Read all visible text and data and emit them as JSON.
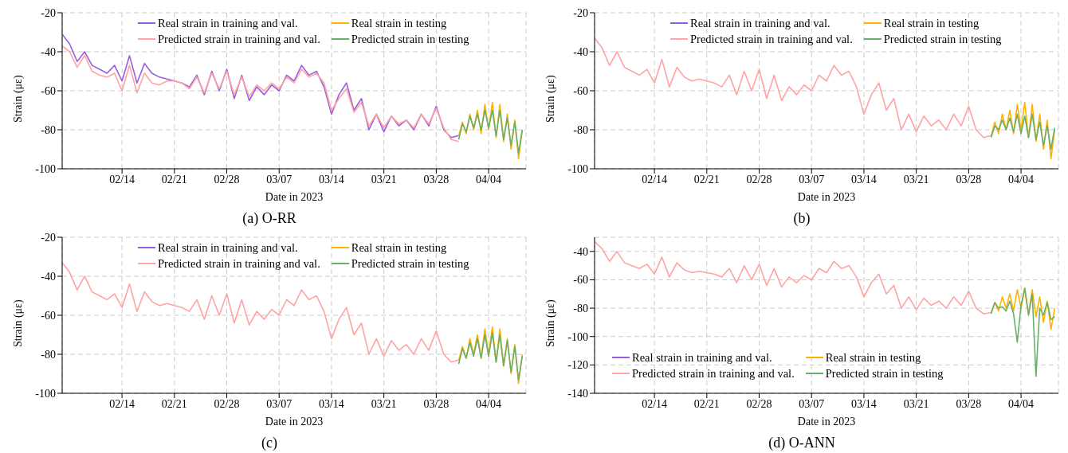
{
  "chart_data": [
    {
      "type": "line",
      "xlabel": "Date in 2023",
      "ylabel": "Strain (με)",
      "annotations": [
        "(a) O-RR"
      ],
      "grid": true,
      "legend": "top",
      "ylim": [
        -100,
        -20
      ],
      "yticks": [
        -100,
        -80,
        -60,
        -40,
        -20
      ],
      "xlim": [
        "2023-02-06",
        "2023-04-09"
      ],
      "xticks": [
        {
          "value": "2023-02-14",
          "label": "02/14"
        },
        {
          "value": "2023-02-21",
          "label": "02/21"
        },
        {
          "value": "2023-02-28",
          "label": "02/28"
        },
        {
          "value": "2023-03-07",
          "label": "03/07"
        },
        {
          "value": "2023-03-14",
          "label": "03/14"
        },
        {
          "value": "2023-03-21",
          "label": "03/21"
        },
        {
          "value": "2023-03-28",
          "label": "03/28"
        },
        {
          "value": "2023-04-04",
          "label": "04/04"
        }
      ],
      "series": [
        {
          "name": "Real strain in training and val.",
          "color": "#9b5de0",
          "x": [
            "2023-02-06",
            "2023-02-07",
            "2023-02-08",
            "2023-02-09",
            "2023-02-10",
            "2023-02-11",
            "2023-02-12",
            "2023-02-13",
            "2023-02-14",
            "2023-02-15",
            "2023-02-16",
            "2023-02-17",
            "2023-02-18",
            "2023-02-19",
            "2023-02-20",
            "2023-02-21",
            "2023-02-22",
            "2023-02-23",
            "2023-02-24",
            "2023-02-25",
            "2023-02-26",
            "2023-02-27",
            "2023-02-28",
            "2023-03-01",
            "2023-03-02",
            "2023-03-03",
            "2023-03-04",
            "2023-03-05",
            "2023-03-06",
            "2023-03-07",
            "2023-03-08",
            "2023-03-09",
            "2023-03-10",
            "2023-03-11",
            "2023-03-12",
            "2023-03-13",
            "2023-03-14",
            "2023-03-15",
            "2023-03-16",
            "2023-03-17",
            "2023-03-18",
            "2023-03-19",
            "2023-03-20",
            "2023-03-21",
            "2023-03-22",
            "2023-03-23",
            "2023-03-24",
            "2023-03-25",
            "2023-03-26",
            "2023-03-27",
            "2023-03-28",
            "2023-03-29",
            "2023-03-30",
            "2023-03-31"
          ],
          "values": [
            -31,
            -36,
            -45,
            -40,
            -47,
            -49,
            -51,
            -47,
            -55,
            -42,
            -56,
            -46,
            -51,
            -53,
            -54,
            -55,
            -56,
            -58,
            -52,
            -62,
            -50,
            -60,
            -49,
            -64,
            -52,
            -65,
            -58,
            -62,
            -57,
            -60,
            -52,
            -55,
            -47,
            -52,
            -50,
            -58,
            -72,
            -62,
            -56,
            -70,
            -64,
            -80,
            -72,
            -81,
            -73,
            -78,
            -75,
            -80,
            -72,
            -78,
            -68,
            -80,
            -84,
            -83
          ]
        },
        {
          "name": "Predicted strain in training and val.",
          "color": "#ffa3a3",
          "x": [
            "2023-02-06",
            "2023-02-07",
            "2023-02-08",
            "2023-02-09",
            "2023-02-10",
            "2023-02-11",
            "2023-02-12",
            "2023-02-13",
            "2023-02-14",
            "2023-02-15",
            "2023-02-16",
            "2023-02-17",
            "2023-02-18",
            "2023-02-19",
            "2023-02-20",
            "2023-02-21",
            "2023-02-22",
            "2023-02-23",
            "2023-02-24",
            "2023-02-25",
            "2023-02-26",
            "2023-02-27",
            "2023-02-28",
            "2023-03-01",
            "2023-03-02",
            "2023-03-03",
            "2023-03-04",
            "2023-03-05",
            "2023-03-06",
            "2023-03-07",
            "2023-03-08",
            "2023-03-09",
            "2023-03-10",
            "2023-03-11",
            "2023-03-12",
            "2023-03-13",
            "2023-03-14",
            "2023-03-15",
            "2023-03-16",
            "2023-03-17",
            "2023-03-18",
            "2023-03-19",
            "2023-03-20",
            "2023-03-21",
            "2023-03-22",
            "2023-03-23",
            "2023-03-24",
            "2023-03-25",
            "2023-03-26",
            "2023-03-27",
            "2023-03-28",
            "2023-03-29",
            "2023-03-30",
            "2023-03-31"
          ],
          "values": [
            -37,
            -40,
            -48,
            -42,
            -50,
            -52,
            -53,
            -51,
            -60,
            -47,
            -61,
            -51,
            -56,
            -57,
            -55,
            -55,
            -56,
            -59,
            -53,
            -61,
            -51,
            -59,
            -50,
            -62,
            -53,
            -63,
            -57,
            -60,
            -56,
            -59,
            -53,
            -56,
            -49,
            -53,
            -51,
            -56,
            -70,
            -64,
            -59,
            -71,
            -66,
            -78,
            -72,
            -79,
            -73,
            -77,
            -75,
            -79,
            -72,
            -77,
            -69,
            -79,
            -85,
            -86
          ]
        },
        {
          "name": "Real strain in testing",
          "color": "#ffb300",
          "x": [
            "2023-03-31T00:00",
            "2023-03-31T12:00",
            "2023-04-01T00:00",
            "2023-04-01T12:00",
            "2023-04-02T00:00",
            "2023-04-02T12:00",
            "2023-04-03T00:00",
            "2023-04-03T12:00",
            "2023-04-04T00:00",
            "2023-04-04T12:00",
            "2023-04-05T00:00",
            "2023-04-05T12:00",
            "2023-04-06T00:00",
            "2023-04-06T12:00",
            "2023-04-07T00:00",
            "2023-04-07T12:00",
            "2023-04-08T00:00",
            "2023-04-08T12:00"
          ],
          "values": [
            -83,
            -76,
            -82,
            -72,
            -80,
            -70,
            -82,
            -67,
            -80,
            -66,
            -84,
            -67,
            -86,
            -72,
            -90,
            -75,
            -95,
            -80
          ]
        },
        {
          "name": "Predicted strain in testing",
          "color": "#6aaf6a",
          "x": [
            "2023-03-31T00:00",
            "2023-03-31T12:00",
            "2023-04-01T00:00",
            "2023-04-01T12:00",
            "2023-04-02T00:00",
            "2023-04-02T12:00",
            "2023-04-03T00:00",
            "2023-04-03T12:00",
            "2023-04-04T00:00",
            "2023-04-04T12:00",
            "2023-04-05T00:00",
            "2023-04-05T12:00",
            "2023-04-06T00:00",
            "2023-04-06T12:00",
            "2023-04-07T00:00",
            "2023-04-07T12:00",
            "2023-04-08T00:00",
            "2023-04-08T12:00"
          ],
          "values": [
            -85,
            -77,
            -81,
            -73,
            -79,
            -72,
            -80,
            -70,
            -79,
            -70,
            -83,
            -70,
            -85,
            -74,
            -88,
            -76,
            -92,
            -80
          ]
        }
      ]
    },
    {
      "type": "line",
      "xlabel": "Date in 2023",
      "ylabel": "Strain (με)",
      "annotations": [
        "(b)"
      ],
      "grid": true,
      "legend": "top",
      "ylim": [
        -100,
        -20
      ],
      "yticks": [
        -100,
        -80,
        -60,
        -40,
        -20
      ],
      "xlim": [
        "2023-02-06",
        "2023-04-09"
      ],
      "xticks": [
        {
          "value": "2023-02-14",
          "label": "02/14"
        },
        {
          "value": "2023-02-21",
          "label": "02/21"
        },
        {
          "value": "2023-02-28",
          "label": "02/28"
        },
        {
          "value": "2023-03-07",
          "label": "03/07"
        },
        {
          "value": "2023-03-14",
          "label": "03/14"
        },
        {
          "value": "2023-03-21",
          "label": "03/21"
        },
        {
          "value": "2023-03-28",
          "label": "03/28"
        },
        {
          "value": "2023-04-04",
          "label": "04/04"
        }
      ],
      "series": [
        {
          "name": "Real strain in training and val.",
          "color": "#9b5de0"
        },
        {
          "name": "Predicted strain in training and val.",
          "color": "#ffa3a3",
          "x": [
            "2023-02-06",
            "2023-02-07",
            "2023-02-08",
            "2023-02-09",
            "2023-02-10",
            "2023-02-11",
            "2023-02-12",
            "2023-02-13",
            "2023-02-14",
            "2023-02-15",
            "2023-02-16",
            "2023-02-17",
            "2023-02-18",
            "2023-02-19",
            "2023-02-20",
            "2023-02-21",
            "2023-02-22",
            "2023-02-23",
            "2023-02-24",
            "2023-02-25",
            "2023-02-26",
            "2023-02-27",
            "2023-02-28",
            "2023-03-01",
            "2023-03-02",
            "2023-03-03",
            "2023-03-04",
            "2023-03-05",
            "2023-03-06",
            "2023-03-07",
            "2023-03-08",
            "2023-03-09",
            "2023-03-10",
            "2023-03-11",
            "2023-03-12",
            "2023-03-13",
            "2023-03-14",
            "2023-03-15",
            "2023-03-16",
            "2023-03-17",
            "2023-03-18",
            "2023-03-19",
            "2023-03-20",
            "2023-03-21",
            "2023-03-22",
            "2023-03-23",
            "2023-03-24",
            "2023-03-25",
            "2023-03-26",
            "2023-03-27",
            "2023-03-28",
            "2023-03-29",
            "2023-03-30",
            "2023-03-31"
          ],
          "values": [
            -33,
            -38,
            -47,
            -40,
            -48,
            -50,
            -52,
            -49,
            -56,
            -44,
            -58,
            -48,
            -53,
            -55,
            -54,
            -55,
            -56,
            -58,
            -52,
            -62,
            -50,
            -60,
            -49,
            -64,
            -52,
            -65,
            -58,
            -62,
            -57,
            -60,
            -52,
            -55,
            -47,
            -52,
            -50,
            -58,
            -72,
            -62,
            -56,
            -70,
            -64,
            -80,
            -72,
            -81,
            -73,
            -78,
            -75,
            -80,
            -72,
            -78,
            -68,
            -80,
            -84,
            -83
          ]
        },
        {
          "name": "Real strain in testing",
          "color": "#ffb300",
          "x": [
            "2023-03-31T00:00",
            "2023-03-31T12:00",
            "2023-04-01T00:00",
            "2023-04-01T12:00",
            "2023-04-02T00:00",
            "2023-04-02T12:00",
            "2023-04-03T00:00",
            "2023-04-03T12:00",
            "2023-04-04T00:00",
            "2023-04-04T12:00",
            "2023-04-05T00:00",
            "2023-04-05T12:00",
            "2023-04-06T00:00",
            "2023-04-06T12:00",
            "2023-04-07T00:00",
            "2023-04-07T12:00",
            "2023-04-08T00:00",
            "2023-04-08T12:00"
          ],
          "values": [
            -83,
            -76,
            -82,
            -72,
            -80,
            -70,
            -82,
            -67,
            -80,
            -66,
            -84,
            -67,
            -86,
            -72,
            -90,
            -75,
            -95,
            -80
          ]
        },
        {
          "name": "Predicted strain in testing",
          "color": "#6aaf6a",
          "x": [
            "2023-03-31T00:00",
            "2023-03-31T12:00",
            "2023-04-01T00:00",
            "2023-04-01T12:00",
            "2023-04-02T00:00",
            "2023-04-02T12:00",
            "2023-04-03T00:00",
            "2023-04-03T12:00",
            "2023-04-04T00:00",
            "2023-04-04T12:00",
            "2023-04-05T00:00",
            "2023-04-05T12:00",
            "2023-04-06T00:00",
            "2023-04-06T12:00",
            "2023-04-07T00:00",
            "2023-04-07T12:00",
            "2023-04-08T00:00",
            "2023-04-08T12:00"
          ],
          "values": [
            -84,
            -78,
            -80,
            -75,
            -80,
            -74,
            -81,
            -72,
            -82,
            -73,
            -84,
            -72,
            -85,
            -76,
            -88,
            -78,
            -90,
            -79
          ]
        }
      ]
    },
    {
      "type": "line",
      "xlabel": "Date in 2023",
      "ylabel": "Strain (με)",
      "annotations": [
        "(c)"
      ],
      "grid": true,
      "legend": "top",
      "ylim": [
        -100,
        -20
      ],
      "yticks": [
        -100,
        -80,
        -60,
        -40,
        -20
      ],
      "xlim": [
        "2023-02-06",
        "2023-04-09"
      ],
      "xticks": [
        {
          "value": "2023-02-14",
          "label": "02/14"
        },
        {
          "value": "2023-02-21",
          "label": "02/21"
        },
        {
          "value": "2023-02-28",
          "label": "02/28"
        },
        {
          "value": "2023-03-07",
          "label": "03/07"
        },
        {
          "value": "2023-03-14",
          "label": "03/14"
        },
        {
          "value": "2023-03-21",
          "label": "03/21"
        },
        {
          "value": "2023-03-28",
          "label": "03/28"
        },
        {
          "value": "2023-04-04",
          "label": "04/04"
        }
      ],
      "series": [
        {
          "name": "Real strain in training and val.",
          "color": "#9b5de0"
        },
        {
          "name": "Predicted strain in training and val.",
          "color": "#ffa3a3",
          "x": [
            "2023-02-06",
            "2023-02-07",
            "2023-02-08",
            "2023-02-09",
            "2023-02-10",
            "2023-02-11",
            "2023-02-12",
            "2023-02-13",
            "2023-02-14",
            "2023-02-15",
            "2023-02-16",
            "2023-02-17",
            "2023-02-18",
            "2023-02-19",
            "2023-02-20",
            "2023-02-21",
            "2023-02-22",
            "2023-02-23",
            "2023-02-24",
            "2023-02-25",
            "2023-02-26",
            "2023-02-27",
            "2023-02-28",
            "2023-03-01",
            "2023-03-02",
            "2023-03-03",
            "2023-03-04",
            "2023-03-05",
            "2023-03-06",
            "2023-03-07",
            "2023-03-08",
            "2023-03-09",
            "2023-03-10",
            "2023-03-11",
            "2023-03-12",
            "2023-03-13",
            "2023-03-14",
            "2023-03-15",
            "2023-03-16",
            "2023-03-17",
            "2023-03-18",
            "2023-03-19",
            "2023-03-20",
            "2023-03-21",
            "2023-03-22",
            "2023-03-23",
            "2023-03-24",
            "2023-03-25",
            "2023-03-26",
            "2023-03-27",
            "2023-03-28",
            "2023-03-29",
            "2023-03-30",
            "2023-03-31"
          ],
          "values": [
            -33,
            -38,
            -47,
            -40,
            -48,
            -50,
            -52,
            -49,
            -56,
            -44,
            -58,
            -48,
            -53,
            -55,
            -54,
            -55,
            -56,
            -58,
            -52,
            -62,
            -50,
            -60,
            -49,
            -64,
            -52,
            -65,
            -58,
            -62,
            -57,
            -60,
            -52,
            -55,
            -47,
            -52,
            -50,
            -58,
            -72,
            -62,
            -56,
            -70,
            -64,
            -80,
            -72,
            -81,
            -73,
            -78,
            -75,
            -80,
            -72,
            -78,
            -68,
            -80,
            -84,
            -83
          ]
        },
        {
          "name": "Real strain in testing",
          "color": "#ffb300",
          "x": [
            "2023-03-31T00:00",
            "2023-03-31T12:00",
            "2023-04-01T00:00",
            "2023-04-01T12:00",
            "2023-04-02T00:00",
            "2023-04-02T12:00",
            "2023-04-03T00:00",
            "2023-04-03T12:00",
            "2023-04-04T00:00",
            "2023-04-04T12:00",
            "2023-04-05T00:00",
            "2023-04-05T12:00",
            "2023-04-06T00:00",
            "2023-04-06T12:00",
            "2023-04-07T00:00",
            "2023-04-07T12:00",
            "2023-04-08T00:00",
            "2023-04-08T12:00"
          ],
          "values": [
            -83,
            -76,
            -82,
            -72,
            -80,
            -70,
            -82,
            -67,
            -80,
            -66,
            -84,
            -67,
            -86,
            -72,
            -90,
            -75,
            -95,
            -80
          ]
        },
        {
          "name": "Predicted strain in testing",
          "color": "#6aaf6a",
          "x": [
            "2023-03-31T00:00",
            "2023-03-31T12:00",
            "2023-04-01T00:00",
            "2023-04-01T12:00",
            "2023-04-02T00:00",
            "2023-04-02T12:00",
            "2023-04-03T00:00",
            "2023-04-03T12:00",
            "2023-04-04T00:00",
            "2023-04-04T12:00",
            "2023-04-05T00:00",
            "2023-04-05T12:00",
            "2023-04-06T00:00",
            "2023-04-06T12:00",
            "2023-04-07T00:00",
            "2023-04-07T12:00",
            "2023-04-08T00:00",
            "2023-04-08T12:00"
          ],
          "values": [
            -85,
            -77,
            -82,
            -74,
            -81,
            -72,
            -82,
            -70,
            -81,
            -69,
            -84,
            -70,
            -86,
            -73,
            -89,
            -76,
            -93,
            -81
          ]
        }
      ]
    },
    {
      "type": "line",
      "xlabel": "Date in 2023",
      "ylabel": "Strain (με)",
      "annotations": [
        "(d) O-ANN"
      ],
      "grid": true,
      "legend": "bottom",
      "ylim": [
        -140,
        -30
      ],
      "yticks": [
        -140,
        -120,
        -100,
        -80,
        -60,
        -40
      ],
      "xlim": [
        "2023-02-06",
        "2023-04-09"
      ],
      "xticks": [
        {
          "value": "2023-02-14",
          "label": "02/14"
        },
        {
          "value": "2023-02-21",
          "label": "02/21"
        },
        {
          "value": "2023-02-28",
          "label": "02/28"
        },
        {
          "value": "2023-03-07",
          "label": "03/07"
        },
        {
          "value": "2023-03-14",
          "label": "03/14"
        },
        {
          "value": "2023-03-21",
          "label": "03/21"
        },
        {
          "value": "2023-03-28",
          "label": "03/28"
        },
        {
          "value": "2023-04-04",
          "label": "04/04"
        }
      ],
      "series": [
        {
          "name": "Real strain in training and val.",
          "color": "#9b5de0"
        },
        {
          "name": "Predicted strain in training and val.",
          "color": "#ffa3a3",
          "x": [
            "2023-02-06",
            "2023-02-07",
            "2023-02-08",
            "2023-02-09",
            "2023-02-10",
            "2023-02-11",
            "2023-02-12",
            "2023-02-13",
            "2023-02-14",
            "2023-02-15",
            "2023-02-16",
            "2023-02-17",
            "2023-02-18",
            "2023-02-19",
            "2023-02-20",
            "2023-02-21",
            "2023-02-22",
            "2023-02-23",
            "2023-02-24",
            "2023-02-25",
            "2023-02-26",
            "2023-02-27",
            "2023-02-28",
            "2023-03-01",
            "2023-03-02",
            "2023-03-03",
            "2023-03-04",
            "2023-03-05",
            "2023-03-06",
            "2023-03-07",
            "2023-03-08",
            "2023-03-09",
            "2023-03-10",
            "2023-03-11",
            "2023-03-12",
            "2023-03-13",
            "2023-03-14",
            "2023-03-15",
            "2023-03-16",
            "2023-03-17",
            "2023-03-18",
            "2023-03-19",
            "2023-03-20",
            "2023-03-21",
            "2023-03-22",
            "2023-03-23",
            "2023-03-24",
            "2023-03-25",
            "2023-03-26",
            "2023-03-27",
            "2023-03-28",
            "2023-03-29",
            "2023-03-30",
            "2023-03-31"
          ],
          "values": [
            -33,
            -38,
            -47,
            -40,
            -48,
            -50,
            -52,
            -49,
            -56,
            -44,
            -58,
            -48,
            -53,
            -55,
            -54,
            -55,
            -56,
            -58,
            -52,
            -62,
            -50,
            -60,
            -49,
            -64,
            -52,
            -65,
            -58,
            -62,
            -57,
            -60,
            -52,
            -55,
            -47,
            -52,
            -50,
            -58,
            -72,
            -62,
            -56,
            -70,
            -64,
            -80,
            -72,
            -81,
            -73,
            -78,
            -75,
            -80,
            -72,
            -78,
            -68,
            -80,
            -84,
            -83
          ]
        },
        {
          "name": "Real strain in testing",
          "color": "#ffb300",
          "x": [
            "2023-03-31T00:00",
            "2023-03-31T12:00",
            "2023-04-01T00:00",
            "2023-04-01T12:00",
            "2023-04-02T00:00",
            "2023-04-02T12:00",
            "2023-04-03T00:00",
            "2023-04-03T12:00",
            "2023-04-04T00:00",
            "2023-04-04T12:00",
            "2023-04-05T00:00",
            "2023-04-05T12:00",
            "2023-04-06T00:00",
            "2023-04-06T12:00",
            "2023-04-07T00:00",
            "2023-04-07T12:00",
            "2023-04-08T00:00",
            "2023-04-08T12:00"
          ],
          "values": [
            -83,
            -76,
            -82,
            -72,
            -80,
            -70,
            -82,
            -67,
            -80,
            -66,
            -84,
            -67,
            -86,
            -72,
            -90,
            -75,
            -95,
            -80
          ]
        },
        {
          "name": "Predicted strain in testing",
          "color": "#6aaf6a",
          "x": [
            "2023-03-31T00:00",
            "2023-03-31T12:00",
            "2023-04-01T00:00",
            "2023-04-01T12:00",
            "2023-04-02T00:00",
            "2023-04-02T12:00",
            "2023-04-03T00:00",
            "2023-04-03T12:00",
            "2023-04-04T00:00",
            "2023-04-04T12:00",
            "2023-04-05T00:00",
            "2023-04-05T12:00",
            "2023-04-06T00:00",
            "2023-04-06T12:00",
            "2023-04-07T00:00",
            "2023-04-07T12:00",
            "2023-04-08T00:00",
            "2023-04-08T12:00"
          ],
          "values": [
            -84,
            -76,
            -80,
            -79,
            -82,
            -75,
            -84,
            -104,
            -78,
            -66,
            -85,
            -70,
            -128,
            -80,
            -85,
            -76,
            -88,
            -86
          ]
        }
      ]
    }
  ]
}
